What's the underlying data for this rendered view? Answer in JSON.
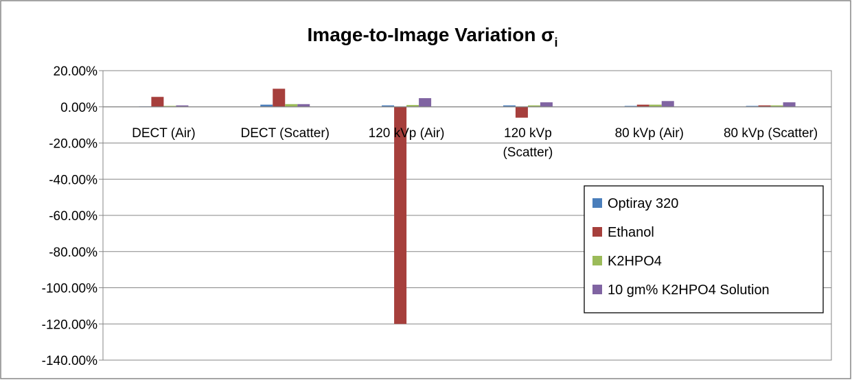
{
  "chart_data": {
    "type": "bar",
    "title": "Image-to-Image Variation σ",
    "title_subscript": "i",
    "xlabel": "",
    "ylabel": "",
    "ylim": [
      -140,
      20
    ],
    "y_tick_step": 20,
    "y_tick_labels": [
      "20.00%",
      "0.00%",
      "-20.00%",
      "-40.00%",
      "-60.00%",
      "-80.00%",
      "-100.00%",
      "-120.00%",
      "-140.00%"
    ],
    "grid": true,
    "legend_position": "bottom-right",
    "categories": [
      [
        "DECT (Air)"
      ],
      [
        "DECT (Scatter)"
      ],
      [
        "120 kVp (Air)"
      ],
      [
        "120 kVp",
        "(Scatter)"
      ],
      [
        "80 kVp (Air)"
      ],
      [
        "80 kVp (Scatter)"
      ]
    ],
    "series": [
      {
        "name": "Optiray 320",
        "color": "#4a7ebb",
        "values": [
          0.3,
          1.2,
          0.8,
          0.8,
          0.5,
          0.5
        ]
      },
      {
        "name": "Ethanol",
        "color": "#a63f3c",
        "values": [
          5.5,
          10.0,
          -120.0,
          -6.0,
          1.2,
          0.8
        ]
      },
      {
        "name": "K2HPO4",
        "color": "#9bbb59",
        "values": [
          0.5,
          1.5,
          1.0,
          0.8,
          1.2,
          0.8
        ]
      },
      {
        "name": "10 gm% K2HPO4 Solution",
        "color": "#8064a2",
        "values": [
          0.8,
          1.5,
          4.8,
          2.5,
          3.2,
          2.5
        ]
      }
    ]
  }
}
